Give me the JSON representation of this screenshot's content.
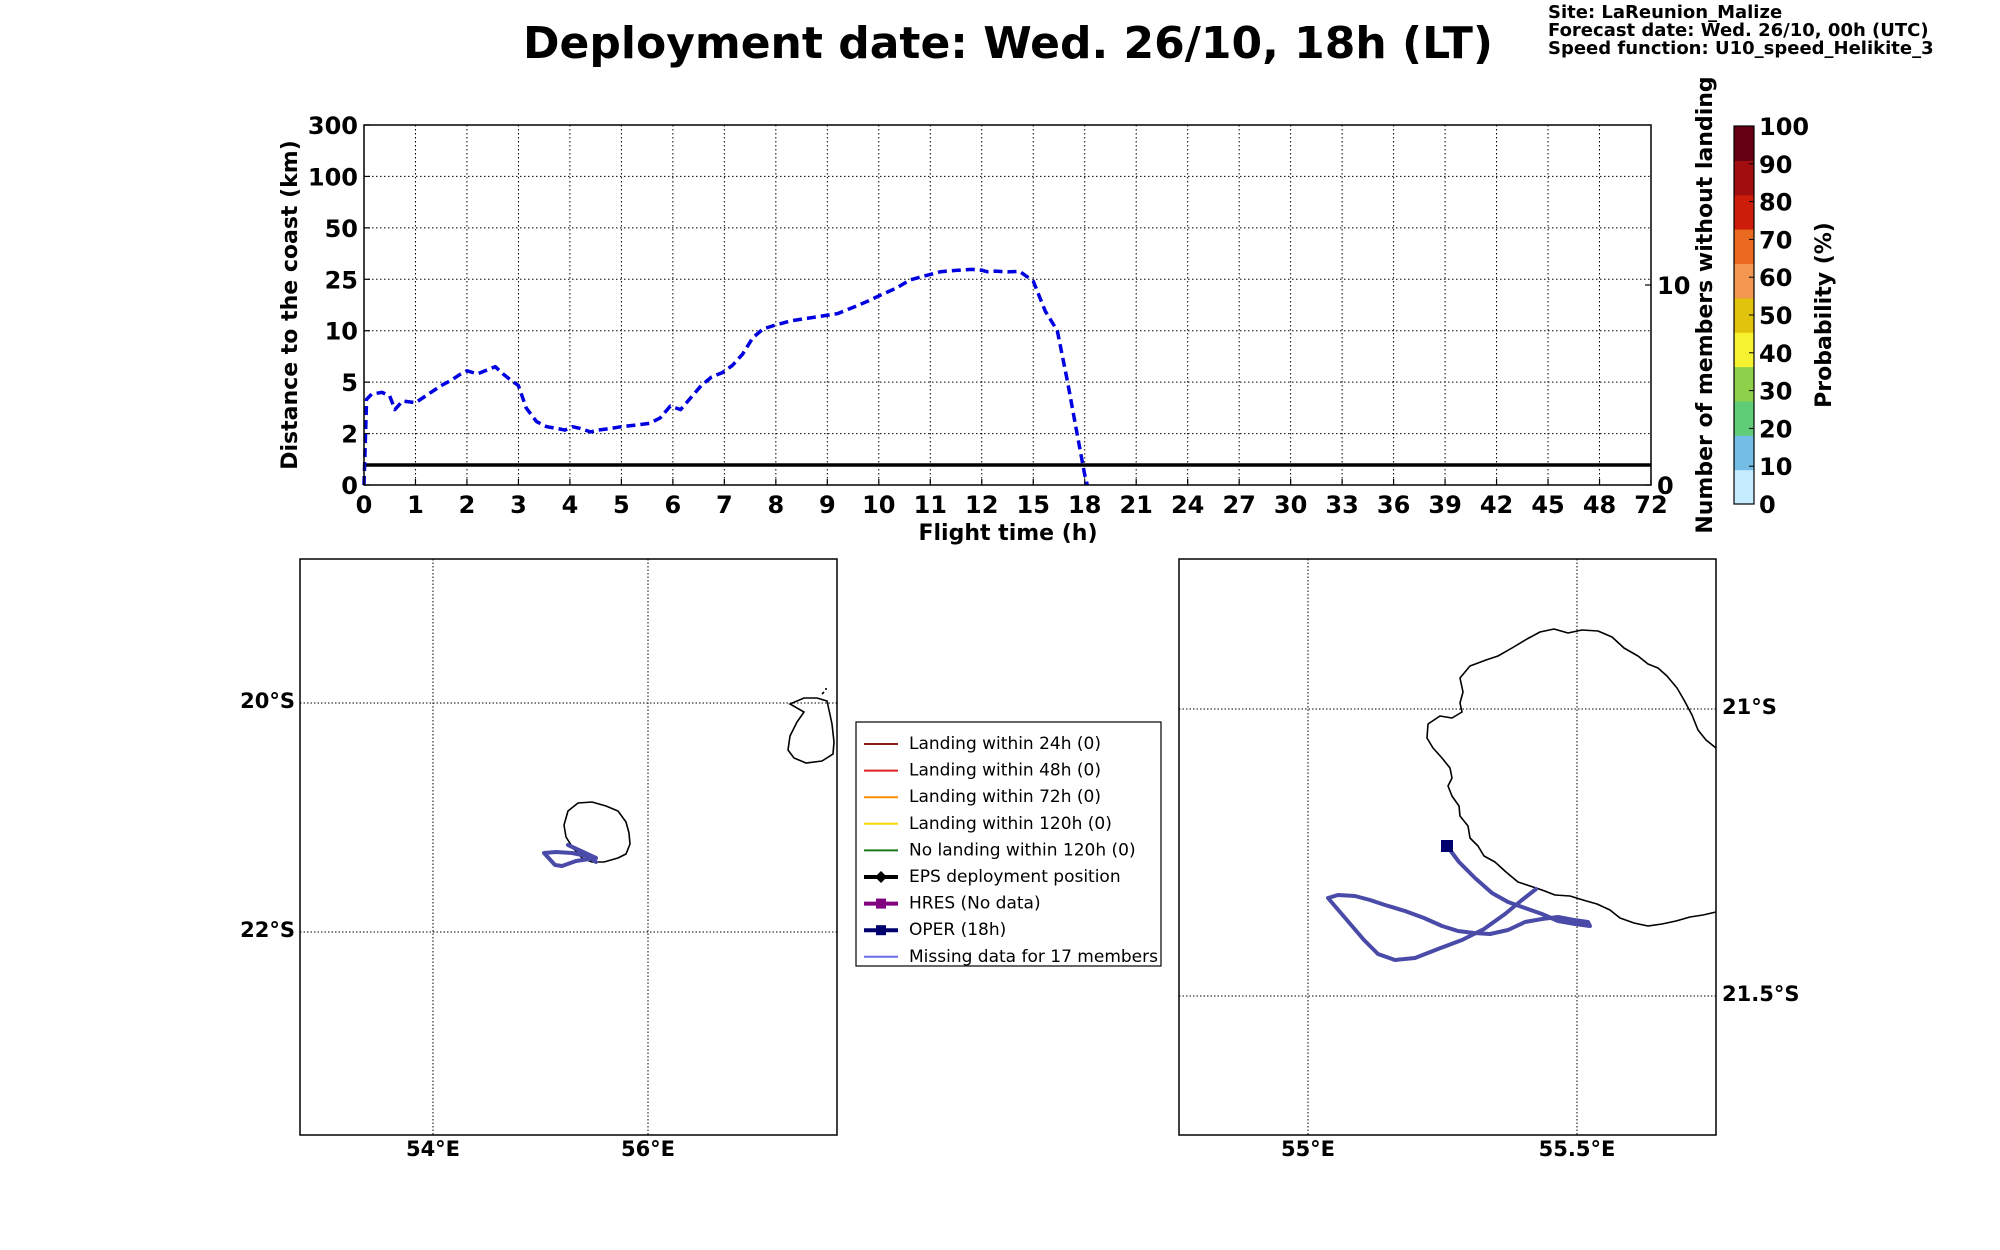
{
  "header": {
    "title": "Deployment date: Wed. 26/10, 18h (LT)",
    "site": "Site: LaReunion_Malize",
    "forecast": "Forecast date: Wed. 26/10, 00h (UTC)",
    "speed": "Speed function: U10_speed_Helikite_3"
  },
  "chart_data": [
    {
      "type": "line",
      "xlabel": "Flight time (h)",
      "ylabel": "Distance to the coast (km)",
      "y2label": "Number of members without landing",
      "x_ticks": [
        "0",
        "1",
        "2",
        "3",
        "4",
        "5",
        "6",
        "7",
        "8",
        "9",
        "10",
        "11",
        "12",
        "15",
        "18",
        "21",
        "24",
        "27",
        "30",
        "33",
        "36",
        "39",
        "42",
        "45",
        "48",
        "72"
      ],
      "y_ticks": [
        "0",
        "2",
        "5",
        "10",
        "25",
        "50",
        "100",
        "300"
      ],
      "y2_ticks": [
        "0",
        "10"
      ],
      "y2_range": [
        0,
        18
      ],
      "grid": true,
      "series": [
        {
          "name": "",
          "color": "#0000e0",
          "style": "dashed",
          "x": [
            0,
            0.05,
            0.15,
            0.35,
            0.5,
            0.6,
            0.75,
            1.0,
            1.25,
            1.5,
            1.7,
            1.85,
            2.0,
            2.2,
            2.4,
            2.55,
            2.7,
            2.85,
            3.0,
            3.15,
            3.35,
            3.55,
            3.75,
            3.9,
            4.05,
            4.2,
            4.4,
            4.55,
            4.8,
            5.0,
            5.3,
            5.55,
            5.75,
            5.95,
            6.15,
            6.35,
            6.55,
            6.75,
            6.95,
            7.15,
            7.35,
            7.55,
            7.75,
            8.0,
            8.3,
            8.6,
            8.9,
            9.2,
            9.5,
            9.8,
            10.05,
            10.35,
            10.6,
            10.9,
            11.2,
            11.5,
            11.8,
            12.0,
            12.3,
            12.8,
            13.5,
            14.2,
            15.0,
            15.7,
            16.4,
            17.0,
            17.5,
            18.0,
            18.15
          ],
          "y": [
            0,
            4,
            4.3,
            4.4,
            4.2,
            3.4,
            3.9,
            3.8,
            4.3,
            4.8,
            5.2,
            5.7,
            6.1,
            5.8,
            6.2,
            6.5,
            5.8,
            5.2,
            4.8,
            3.5,
            2.7,
            2.4,
            2.3,
            2.2,
            2.4,
            2.3,
            2.1,
            2.2,
            2.3,
            2.4,
            2.5,
            2.6,
            2.9,
            3.6,
            3.4,
            4.1,
            4.8,
            5.5,
            5.9,
            6.6,
            7.7,
            9.3,
            10.5,
            11.7,
            12.9,
            13.6,
            14.3,
            15.0,
            16.8,
            18.7,
            20.5,
            22.5,
            24.8,
            26.7,
            28.7,
            29.3,
            29.8,
            29.4,
            28.7,
            29.0,
            28.6,
            28.9,
            24.5,
            15.7,
            10.0,
            5.0,
            2.3,
            0.4,
            0
          ]
        },
        {
          "name": "",
          "color": "#000000",
          "style": "solid",
          "x": [
            0,
            72
          ],
          "y2": [
            1,
            1
          ]
        }
      ]
    },
    {
      "type": "heatmap",
      "ylabel": "Probability (%)",
      "ticks": [
        "0",
        "10",
        "20",
        "30",
        "40",
        "50",
        "60",
        "70",
        "80",
        "90",
        "100"
      ],
      "colors": [
        "#c6ecff",
        "#74bde6",
        "#5fcd77",
        "#8fd04a",
        "#f7f230",
        "#e1c20c",
        "#f29650",
        "#ea6a22",
        "#cc1c0a",
        "#a00e10",
        "#640012"
      ]
    }
  ],
  "maps": {
    "left": {
      "lat_labels": [
        "20°S",
        "22°S"
      ],
      "lon_labels": [
        "54°E",
        "56°E"
      ]
    },
    "right": {
      "lat_labels": [
        "21°S",
        "21.5°S"
      ],
      "lon_labels": [
        "55°E",
        "55.5°E"
      ]
    },
    "track_color": "#4a4aa8"
  },
  "legend": {
    "items": [
      {
        "label": "Landing within 24h (0)",
        "color": "#8b1a1a",
        "marker": "none"
      },
      {
        "label": "Landing within 48h (0)",
        "color": "#e02020",
        "marker": "none"
      },
      {
        "label": "Landing within 72h (0)",
        "color": "#ff8c00",
        "marker": "none"
      },
      {
        "label": "Landing within 120h (0)",
        "color": "#ffd700",
        "marker": "none"
      },
      {
        "label": "No landing within 120h (0)",
        "color": "#1a7a1a",
        "marker": "none"
      },
      {
        "label": "EPS deployment position",
        "color": "#000000",
        "marker": "diamond"
      },
      {
        "label": "HRES (No data)",
        "color": "#800080",
        "marker": "square"
      },
      {
        "label": "OPER (18h)",
        "color": "#00006e",
        "marker": "square"
      },
      {
        "label": "Missing data for 17 members",
        "color": "#6a6aee",
        "marker": "none"
      }
    ]
  }
}
